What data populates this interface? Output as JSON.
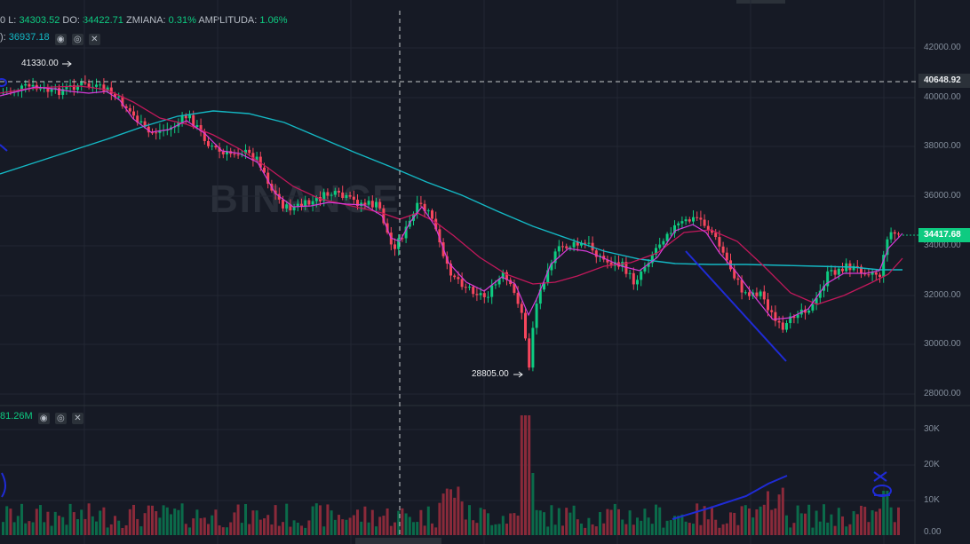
{
  "header": {
    "partial_prefix": "0",
    "low_label": "L:",
    "low_value": "34303.52",
    "close_label": "DO:",
    "close_value": "34422.71",
    "change_label": "ZMIANA:",
    "change_value": "0.31%",
    "amplitude_label": "AMPLITUDA:",
    "amplitude_value": "1.06%",
    "ma_prefix": "):",
    "ma_value": "36937.18"
  },
  "volume_panel": {
    "value": "81.26M"
  },
  "watermark": {
    "text": "BINANCE"
  },
  "markers": {
    "high": "41330.00",
    "low": "28805.00"
  },
  "price_axis": {
    "ticks": [
      "42000.00",
      "40000.00",
      "38000.00",
      "36000.00",
      "34000.00",
      "32000.00",
      "30000.00",
      "28000.00"
    ],
    "crosshair_label": "40648.92",
    "current_price_label": "34417.68"
  },
  "volume_axis": {
    "ticks": [
      "30K",
      "20K",
      "10K",
      "0.00"
    ]
  },
  "colors": {
    "background": "#161a25",
    "up": "#0ecb81",
    "down": "#f6465d",
    "ma_short": "#d63bd9",
    "ma_mid": "#c2185b",
    "ma_long": "#14b8c4",
    "drawing": "#1f2bd6"
  },
  "icons": [
    "eye-icon",
    "settings-icon",
    "close-icon"
  ]
}
